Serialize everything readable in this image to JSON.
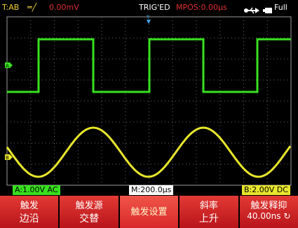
{
  "status": {
    "trigger_info": "T:AB",
    "trigger_edge_symbol": "═╱",
    "trigger_level": "0.00mV",
    "trig_state": "TRIG'ED",
    "mpos": "MPOS:0.00μs",
    "usb_icon": "usb-icon",
    "battery_icon": "battery-icon",
    "battery_text": "Full"
  },
  "markers": {
    "trigger_top": "T",
    "ch_a": "A",
    "ch_b": "B"
  },
  "channels": {
    "a_scale": "A:1.00V AC",
    "b_scale": "B:2.00V DC",
    "timebase": "M:200.0μs"
  },
  "menu": [
    {
      "title": "触发",
      "value": "边沿"
    },
    {
      "title": "触发源",
      "value": "交替"
    },
    {
      "title": "触发设置",
      "value": ""
    },
    {
      "title": "斜率",
      "value": "上升"
    },
    {
      "title": "触发释抑",
      "value": "40.00ns"
    }
  ],
  "colors": {
    "channel_a": "#38e11f",
    "channel_b": "#e8e62c",
    "status_red": "#e03030",
    "trigger_blue": "#40a8e8"
  }
}
